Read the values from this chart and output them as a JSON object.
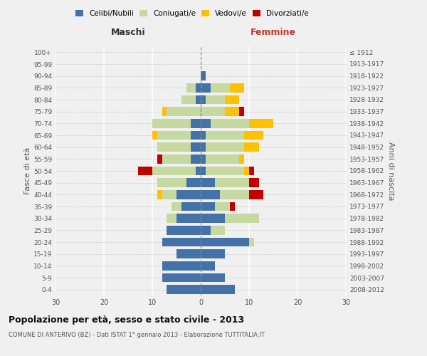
{
  "age_groups": [
    "100+",
    "95-99",
    "90-94",
    "85-89",
    "80-84",
    "75-79",
    "70-74",
    "65-69",
    "60-64",
    "55-59",
    "50-54",
    "45-49",
    "40-44",
    "35-39",
    "30-34",
    "25-29",
    "20-24",
    "15-19",
    "10-14",
    "5-9",
    "0-4"
  ],
  "birth_years": [
    "≤ 1912",
    "1913-1917",
    "1918-1922",
    "1923-1927",
    "1928-1932",
    "1933-1937",
    "1938-1942",
    "1943-1947",
    "1948-1952",
    "1953-1957",
    "1958-1962",
    "1963-1967",
    "1968-1972",
    "1973-1977",
    "1978-1982",
    "1983-1987",
    "1988-1992",
    "1993-1997",
    "1998-2002",
    "2003-2007",
    "2008-2012"
  ],
  "males": {
    "celibi": [
      0,
      0,
      0,
      1,
      1,
      0,
      2,
      2,
      2,
      2,
      1,
      3,
      5,
      4,
      5,
      7,
      8,
      5,
      8,
      8,
      7
    ],
    "coniugati": [
      0,
      0,
      0,
      2,
      3,
      7,
      8,
      7,
      7,
      6,
      9,
      6,
      3,
      2,
      2,
      0,
      0,
      0,
      0,
      0,
      0
    ],
    "vedovi": [
      0,
      0,
      0,
      0,
      0,
      1,
      0,
      1,
      0,
      0,
      0,
      0,
      1,
      0,
      0,
      0,
      0,
      0,
      0,
      0,
      0
    ],
    "divorziati": [
      0,
      0,
      0,
      0,
      0,
      0,
      0,
      0,
      0,
      1,
      3,
      0,
      0,
      0,
      0,
      0,
      0,
      0,
      0,
      0,
      0
    ]
  },
  "females": {
    "nubili": [
      0,
      0,
      1,
      2,
      1,
      0,
      2,
      1,
      1,
      1,
      1,
      3,
      4,
      3,
      5,
      2,
      10,
      5,
      3,
      5,
      7
    ],
    "coniugate": [
      0,
      0,
      0,
      4,
      4,
      5,
      8,
      8,
      8,
      7,
      8,
      7,
      6,
      3,
      7,
      3,
      1,
      0,
      0,
      0,
      0
    ],
    "vedove": [
      0,
      0,
      0,
      3,
      3,
      3,
      5,
      4,
      3,
      1,
      1,
      0,
      0,
      0,
      0,
      0,
      0,
      0,
      0,
      0,
      0
    ],
    "divorziate": [
      0,
      0,
      0,
      0,
      0,
      1,
      0,
      0,
      0,
      0,
      1,
      2,
      3,
      1,
      0,
      0,
      0,
      0,
      0,
      0,
      0
    ]
  },
  "colors": {
    "celibi_nubili": "#4472a8",
    "coniugati": "#c5d9a0",
    "vedovi": "#ffc000",
    "divorziati": "#c00000"
  },
  "xlim": 30,
  "title": "Popolazione per età, sesso e stato civile - 2013",
  "subtitle": "COMUNE DI ANTERIVO (BZ) - Dati ISTAT 1° gennaio 2013 - Elaborazione TUTTITALIA.IT",
  "ylabel_left": "Fasce di età",
  "ylabel_right": "Anni di nascita",
  "xlabel_left": "Maschi",
  "xlabel_right": "Femmine",
  "legend_labels": [
    "Celibi/Nubili",
    "Coniugati/e",
    "Vedovi/e",
    "Divorziati/e"
  ],
  "bg_color": "#f0f0f0"
}
